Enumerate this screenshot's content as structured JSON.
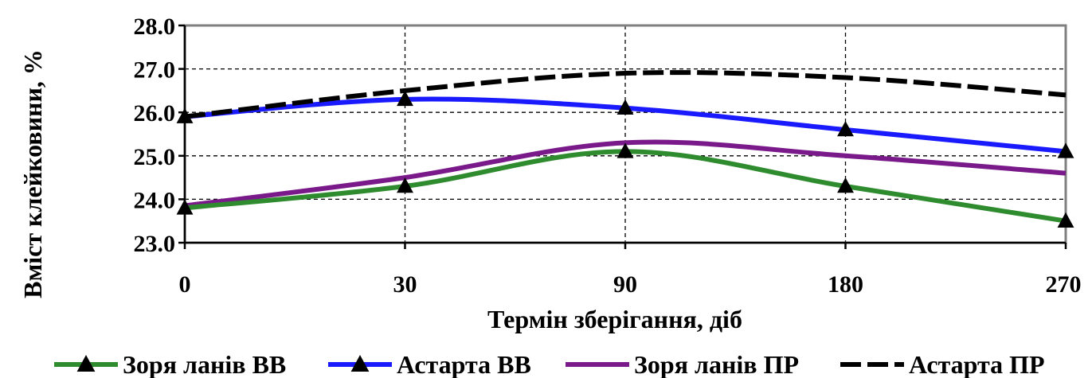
{
  "chart_data": {
    "type": "line",
    "x": [
      "0",
      "30",
      "90",
      "180",
      "270"
    ],
    "xlabel": "Термін зберігання, діб",
    "ylabel": "Вміст клейковини, %",
    "ylim": [
      23.0,
      28.0
    ],
    "yticks": [
      "23.0",
      "24.0",
      "25.0",
      "26.0",
      "27.0",
      "28.0"
    ],
    "grid": true,
    "legend_position": "bottom",
    "series": [
      {
        "name": "Зоря ланів ВВ",
        "values": [
          23.8,
          24.3,
          25.1,
          24.3,
          23.5
        ],
        "color": "#2e8b2e",
        "style": "solid",
        "marker": "triangle"
      },
      {
        "name": "Астарта ВВ",
        "values": [
          25.9,
          26.3,
          26.1,
          25.6,
          25.1
        ],
        "color": "#1a1aff",
        "style": "solid",
        "marker": "triangle"
      },
      {
        "name": "Зоря ланів ПР",
        "values": [
          23.85,
          24.5,
          25.3,
          25.0,
          24.6
        ],
        "color": "#7a1a8a",
        "style": "solid",
        "marker": "none"
      },
      {
        "name": "Астарта ПР",
        "values": [
          25.9,
          26.5,
          26.9,
          26.8,
          26.4
        ],
        "color": "#000000",
        "style": "dashed",
        "marker": "none"
      }
    ]
  }
}
